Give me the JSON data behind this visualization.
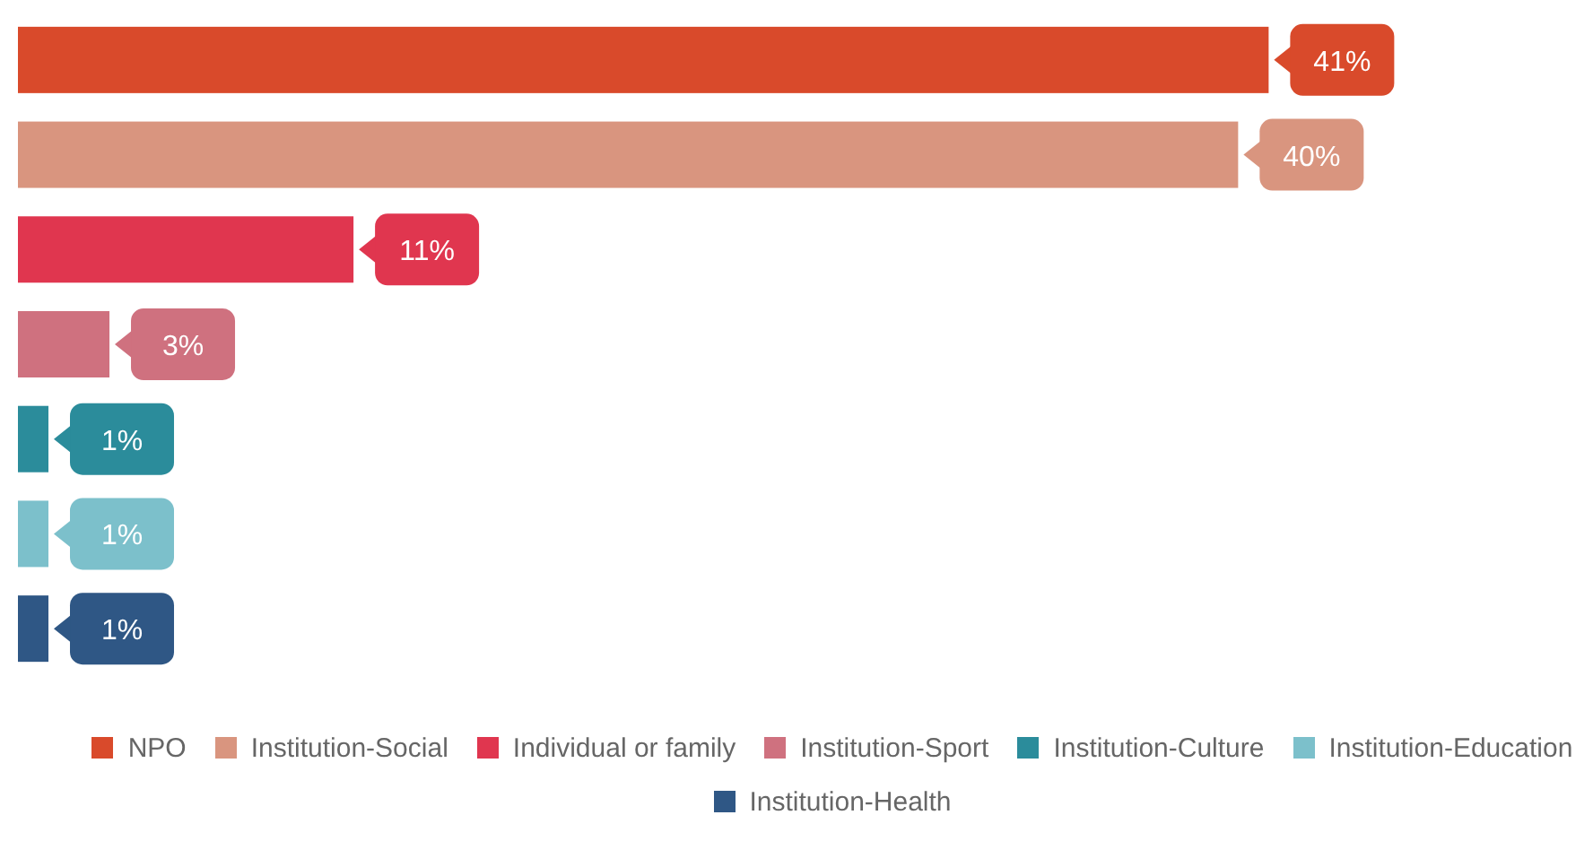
{
  "chart_data": {
    "type": "bar",
    "orientation": "horizontal",
    "stacked": true,
    "legend": "bottom",
    "categories": [
      null,
      null,
      null,
      null,
      null,
      null,
      null
    ],
    "series": [
      {
        "name": "NPO",
        "color": "#d94a2b",
        "values": [
          41,
          null,
          null,
          null,
          null,
          null,
          null
        ],
        "value_labels": [
          "41%",
          null,
          null,
          null,
          null,
          null,
          null
        ]
      },
      {
        "name": "Institution-Social",
        "color": "#d9957f",
        "values": [
          null,
          40,
          null,
          null,
          null,
          null,
          null
        ],
        "value_labels": [
          null,
          "40%",
          null,
          null,
          null,
          null,
          null
        ]
      },
      {
        "name": "Individual or family",
        "color": "#e0364f",
        "values": [
          null,
          null,
          11,
          null,
          null,
          null,
          null
        ],
        "value_labels": [
          null,
          null,
          "11%",
          null,
          null,
          null,
          null
        ]
      },
      {
        "name": "Institution-Sport",
        "color": "#cf717f",
        "values": [
          null,
          null,
          null,
          3,
          null,
          null,
          null
        ],
        "value_labels": [
          null,
          null,
          null,
          "3%",
          null,
          null,
          null
        ]
      },
      {
        "name": "Institution-Culture",
        "color": "#2b8c9b",
        "values": [
          null,
          null,
          null,
          null,
          1,
          null,
          null
        ],
        "value_labels": [
          null,
          null,
          null,
          null,
          "1%",
          null,
          null
        ]
      },
      {
        "name": "Institution-Education",
        "color": "#7cc0cb",
        "values": [
          null,
          null,
          null,
          null,
          null,
          1,
          null
        ],
        "value_labels": [
          null,
          null,
          null,
          null,
          null,
          "1%",
          null
        ]
      },
      {
        "name": "Institution-Health",
        "color": "#2f5785",
        "values": [
          null,
          null,
          null,
          null,
          null,
          null,
          1
        ],
        "value_labels": [
          null,
          null,
          null,
          null,
          null,
          null,
          "1%"
        ]
      }
    ]
  }
}
